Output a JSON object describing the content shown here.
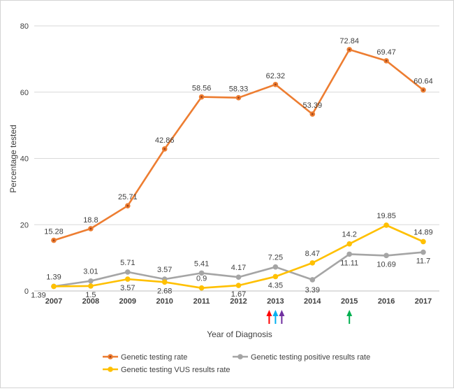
{
  "chart_data": {
    "type": "line",
    "title": "",
    "xlabel": "Year of Diagnosis",
    "ylabel": "Percentage tested",
    "ylim": [
      0,
      80
    ],
    "yticks": [
      0,
      20,
      40,
      60,
      80
    ],
    "grid": true,
    "legend_position": "bottom",
    "categories": [
      "2007",
      "2008",
      "2009",
      "2010",
      "2011",
      "2012",
      "2013",
      "2014",
      "2015",
      "2016",
      "2017"
    ],
    "series": [
      {
        "name": "Genetic testing rate",
        "color": "#ED7D31",
        "values": [
          15.28,
          18.8,
          25.71,
          42.86,
          58.56,
          58.33,
          62.32,
          53.39,
          72.84,
          69.47,
          60.64
        ],
        "labels": [
          "15.28",
          "18.8",
          "25.71",
          "42.86",
          "58.56",
          "58.33",
          "62.32",
          "53.39",
          "72.84",
          "69.47",
          "60.64"
        ]
      },
      {
        "name": "Genetic testing positive results rate",
        "color": "#A5A5A5",
        "values": [
          1.39,
          3.01,
          5.71,
          3.57,
          5.41,
          4.17,
          7.25,
          3.39,
          11.11,
          10.69,
          11.7
        ],
        "labels": [
          "1.39",
          "3.01",
          "5.71",
          "3.57",
          "5.41",
          "4.17",
          "7.25",
          "3.39",
          "11.11",
          "10.69",
          "11.7"
        ]
      },
      {
        "name": "Genetic testing VUS results rate",
        "color": "#FFC000",
        "values": [
          1.39,
          1.5,
          3.57,
          2.68,
          0.9,
          1.67,
          4.35,
          8.47,
          14.2,
          19.85,
          14.89
        ],
        "labels": [
          "1.39",
          "1.5",
          "3.57",
          "2.68",
          "0.9",
          "1.67",
          "4.35",
          "8.47",
          "14.2",
          "19.85",
          "14.89"
        ]
      }
    ],
    "annotations": [
      {
        "type": "arrow",
        "category": "2013",
        "color": "#FF0000"
      },
      {
        "type": "arrow",
        "category": "2013",
        "color": "#00B0F0"
      },
      {
        "type": "arrow",
        "category": "2013",
        "color": "#7030A0"
      },
      {
        "type": "arrow",
        "category": "2015",
        "color": "#00B050"
      }
    ]
  }
}
